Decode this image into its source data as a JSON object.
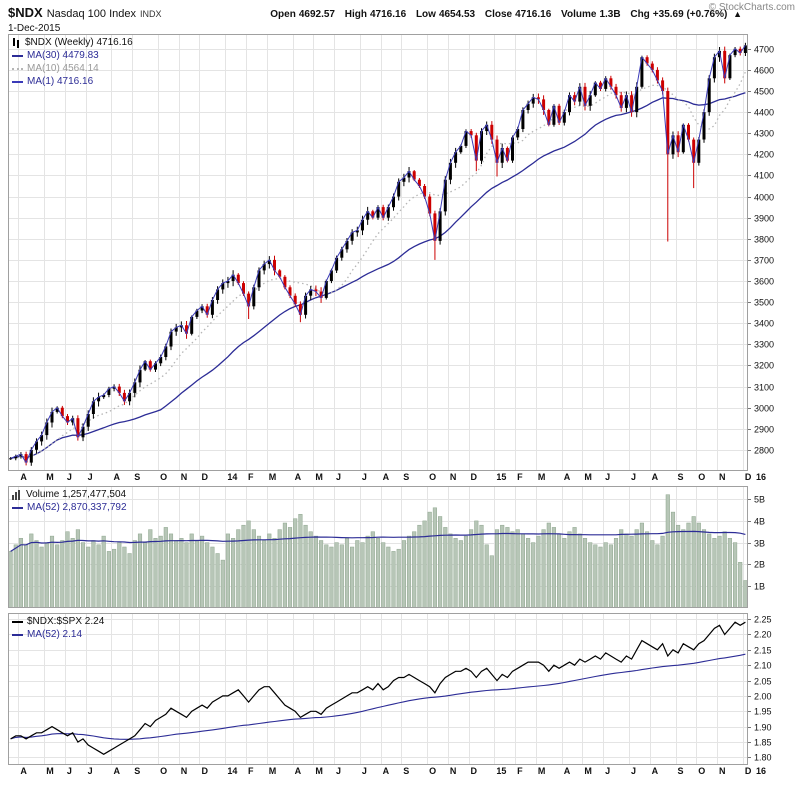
{
  "header": {
    "symbol": "$NDX",
    "name": "Nasdaq 100 Index",
    "exchange": "INDX",
    "date": "1-Dec-2015",
    "copyright": "© StockCharts.com",
    "quote_items": [
      {
        "label": "Open",
        "value": "4692.57"
      },
      {
        "label": "High",
        "value": "4716.16"
      },
      {
        "label": "Low",
        "value": "4654.53"
      },
      {
        "label": "Close",
        "value": "4716.16"
      },
      {
        "label": "Volume",
        "value": "1.3B"
      },
      {
        "label": "Chg",
        "value": "+35.69 (+0.76%)"
      }
    ],
    "arrow": "▲"
  },
  "colors": {
    "up_candle": "#000000",
    "down_candle": "#cc0000",
    "ma30": "#2c2c96",
    "ma10": "#b5b5b5",
    "ma1": "#3a3ab8",
    "volume_bar": "#b7c6b7",
    "volume_bar_edge": "#8ea68e",
    "ratio_line": "#000000",
    "ratio_ma": "#2c2c96",
    "grid": "#e4e4e4",
    "border": "#a0a0a0"
  },
  "chart_data": [
    {
      "type": "candlestick",
      "title": "$NDX (Weekly)",
      "last": 4716.16,
      "legend": [
        "$NDX (Weekly) 4716.16",
        "MA(30) 4479.83",
        "MA(10) 4564.14",
        "MA(1) 4716.16"
      ],
      "overlays": [
        {
          "name": "MA(30)",
          "period": 30,
          "value": 4479.83
        },
        {
          "name": "MA(10)",
          "period": 10,
          "value": 4564.14
        },
        {
          "name": "MA(1)",
          "period": 1,
          "value": 4716.16
        }
      ],
      "ylim": [
        2700,
        4770
      ],
      "y_ticks": [
        2800,
        2900,
        3000,
        3100,
        3200,
        3300,
        3400,
        3500,
        3600,
        3700,
        3800,
        3900,
        4000,
        4100,
        4200,
        4300,
        4400,
        4500,
        4600,
        4700
      ],
      "x_ticks": [
        {
          "label": "A",
          "week": 2
        },
        {
          "label": "M",
          "week": 7
        },
        {
          "label": "J",
          "week": 11
        },
        {
          "label": "J",
          "week": 15
        },
        {
          "label": "A",
          "week": 20
        },
        {
          "label": "S",
          "week": 24
        },
        {
          "label": "O",
          "week": 29
        },
        {
          "label": "N",
          "week": 33
        },
        {
          "label": "D",
          "week": 37
        },
        {
          "label": "14",
          "week": 42,
          "year": true
        },
        {
          "label": "F",
          "week": 46
        },
        {
          "label": "M",
          "week": 50
        },
        {
          "label": "A",
          "week": 55
        },
        {
          "label": "M",
          "week": 59
        },
        {
          "label": "J",
          "week": 63
        },
        {
          "label": "J",
          "week": 68
        },
        {
          "label": "A",
          "week": 72
        },
        {
          "label": "S",
          "week": 76
        },
        {
          "label": "O",
          "week": 81
        },
        {
          "label": "N",
          "week": 85
        },
        {
          "label": "D",
          "week": 89
        },
        {
          "label": "15",
          "week": 94,
          "year": true
        },
        {
          "label": "F",
          "week": 98
        },
        {
          "label": "M",
          "week": 102
        },
        {
          "label": "A",
          "week": 107
        },
        {
          "label": "M",
          "week": 111
        },
        {
          "label": "J",
          "week": 115
        },
        {
          "label": "J",
          "week": 120
        },
        {
          "label": "A",
          "week": 124
        },
        {
          "label": "S",
          "week": 129
        },
        {
          "label": "O",
          "week": 133
        },
        {
          "label": "N",
          "week": 137
        },
        {
          "label": "D",
          "week": 142
        },
        {
          "label": "16",
          "week": 144,
          "year": true
        }
      ],
      "closes": [
        2760,
        2770,
        2780,
        2740,
        2800,
        2840,
        2870,
        2930,
        2980,
        3000,
        2960,
        2930,
        2950,
        2860,
        2910,
        2970,
        3030,
        3050,
        3060,
        3090,
        3100,
        3070,
        3030,
        3070,
        3120,
        3180,
        3220,
        3180,
        3210,
        3240,
        3290,
        3360,
        3380,
        3390,
        3350,
        3430,
        3460,
        3480,
        3440,
        3510,
        3560,
        3590,
        3600,
        3630,
        3590,
        3540,
        3480,
        3570,
        3650,
        3680,
        3700,
        3650,
        3620,
        3570,
        3530,
        3490,
        3440,
        3530,
        3560,
        3550,
        3520,
        3600,
        3650,
        3710,
        3750,
        3790,
        3830,
        3840,
        3890,
        3930,
        3900,
        3950,
        3900,
        3950,
        4000,
        4070,
        4090,
        4120,
        4080,
        4050,
        4000,
        3920,
        3790,
        3930,
        4080,
        4160,
        4210,
        4240,
        4310,
        4290,
        4170,
        4310,
        4340,
        4270,
        4160,
        4230,
        4170,
        4280,
        4320,
        4410,
        4440,
        4470,
        4460,
        4410,
        4340,
        4430,
        4350,
        4400,
        4480,
        4450,
        4520,
        4430,
        4480,
        4540,
        4510,
        4560,
        4520,
        4480,
        4420,
        4480,
        4400,
        4520,
        4660,
        4630,
        4600,
        4550,
        4500,
        4200,
        4290,
        4210,
        4340,
        4270,
        4160,
        4270,
        4400,
        4560,
        4660,
        4690,
        4560,
        4670,
        4700,
        4680,
        4716.16
      ],
      "special_lows": {
        "46": 3420,
        "56": 3405,
        "82": 3700,
        "90": 4120,
        "94": 4095,
        "127": 3787,
        "132": 4040
      }
    },
    {
      "type": "bar",
      "title": "Volume",
      "last_label": "1,257,477,504",
      "ma52_label": "2,870,337,792",
      "legend": [
        "Volume 1,257,477,504",
        "MA(52) 2,870,337,792"
      ],
      "unit": "billions",
      "ylim": [
        0,
        5.6
      ],
      "y_ticks": [
        1,
        2,
        3,
        4,
        5
      ],
      "y_tick_labels": [
        "1B",
        "2B",
        "3B",
        "4B",
        "5B"
      ],
      "values": [
        2.6,
        2.9,
        3.2,
        2.9,
        3.4,
        3.1,
        2.8,
        3.0,
        3.3,
        2.9,
        3.1,
        3.5,
        3.2,
        3.6,
        3.0,
        2.8,
        3.1,
        2.9,
        3.3,
        2.6,
        2.7,
        3.0,
        2.8,
        2.5,
        3.1,
        3.4,
        3.0,
        3.6,
        3.2,
        3.3,
        3.7,
        3.4,
        3.1,
        3.2,
        3.0,
        3.4,
        3.1,
        3.3,
        3.0,
        2.8,
        2.5,
        2.2,
        3.4,
        3.2,
        3.6,
        3.8,
        4.0,
        3.6,
        3.3,
        3.1,
        3.4,
        3.2,
        3.6,
        3.9,
        3.7,
        4.1,
        4.3,
        3.8,
        3.5,
        3.3,
        3.1,
        2.9,
        2.8,
        3.0,
        2.9,
        3.2,
        2.8,
        3.1,
        3.0,
        3.3,
        3.5,
        3.2,
        3.0,
        2.8,
        2.6,
        2.7,
        3.1,
        3.3,
        3.5,
        3.8,
        4.0,
        4.4,
        4.6,
        4.2,
        3.7,
        3.4,
        3.2,
        3.1,
        3.3,
        3.6,
        4.0,
        3.8,
        2.9,
        2.4,
        3.6,
        3.8,
        3.7,
        3.5,
        3.6,
        3.4,
        3.2,
        3.0,
        3.3,
        3.6,
        3.9,
        3.7,
        3.4,
        3.2,
        3.5,
        3.7,
        3.4,
        3.2,
        3.0,
        2.9,
        2.8,
        3.0,
        2.9,
        3.2,
        3.6,
        3.4,
        3.3,
        3.6,
        3.9,
        3.5,
        3.1,
        2.9,
        3.3,
        5.2,
        4.4,
        3.8,
        3.6,
        3.9,
        4.2,
        3.9,
        3.6,
        3.4,
        3.2,
        3.3,
        3.5,
        3.2,
        3.0,
        2.1,
        1.26
      ]
    },
    {
      "type": "line",
      "title": "$NDX:$SPX",
      "last": 2.24,
      "ma52_last": 2.14,
      "legend": [
        "$NDX:$SPX 2.24",
        "MA(52) 2.14"
      ],
      "ylim": [
        1.775,
        2.27
      ],
      "y_ticks": [
        1.8,
        1.85,
        1.9,
        1.95,
        2.0,
        2.05,
        2.1,
        2.15,
        2.2,
        2.25
      ],
      "y_tick_labels": [
        "1.80",
        "1.85",
        "1.90",
        "1.95",
        "2.00",
        "2.05",
        "2.10",
        "2.15",
        "2.20",
        "2.25"
      ],
      "values": [
        1.86,
        1.87,
        1.87,
        1.86,
        1.87,
        1.88,
        1.88,
        1.89,
        1.9,
        1.89,
        1.88,
        1.87,
        1.88,
        1.85,
        1.86,
        1.84,
        1.83,
        1.82,
        1.81,
        1.82,
        1.83,
        1.84,
        1.85,
        1.86,
        1.87,
        1.89,
        1.91,
        1.9,
        1.92,
        1.93,
        1.94,
        1.96,
        1.95,
        1.94,
        1.93,
        1.95,
        1.96,
        1.97,
        1.96,
        1.98,
        1.99,
        2.0,
        2.0,
        2.01,
        2.02,
        2.0,
        1.98,
        2.0,
        2.02,
        2.03,
        2.03,
        2.01,
        1.99,
        1.97,
        1.96,
        1.95,
        1.93,
        1.94,
        1.95,
        1.95,
        1.94,
        1.96,
        1.97,
        1.98,
        1.99,
        2.0,
        2.01,
        2.01,
        2.02,
        2.03,
        2.02,
        2.04,
        2.02,
        2.03,
        2.05,
        2.06,
        2.06,
        2.07,
        2.06,
        2.05,
        2.04,
        2.03,
        2.01,
        2.04,
        2.06,
        2.07,
        2.08,
        2.08,
        2.09,
        2.08,
        2.06,
        2.08,
        2.09,
        2.07,
        2.05,
        2.07,
        2.06,
        2.08,
        2.09,
        2.1,
        2.11,
        2.11,
        2.11,
        2.1,
        2.08,
        2.1,
        2.09,
        2.1,
        2.11,
        2.1,
        2.12,
        2.11,
        2.12,
        2.13,
        2.12,
        2.14,
        2.13,
        2.12,
        2.11,
        2.13,
        2.12,
        2.15,
        2.18,
        2.17,
        2.16,
        2.15,
        2.17,
        2.13,
        2.15,
        2.14,
        2.17,
        2.16,
        2.15,
        2.17,
        2.18,
        2.2,
        2.22,
        2.23,
        2.2,
        2.22,
        2.24,
        2.23,
        2.24
      ]
    }
  ]
}
